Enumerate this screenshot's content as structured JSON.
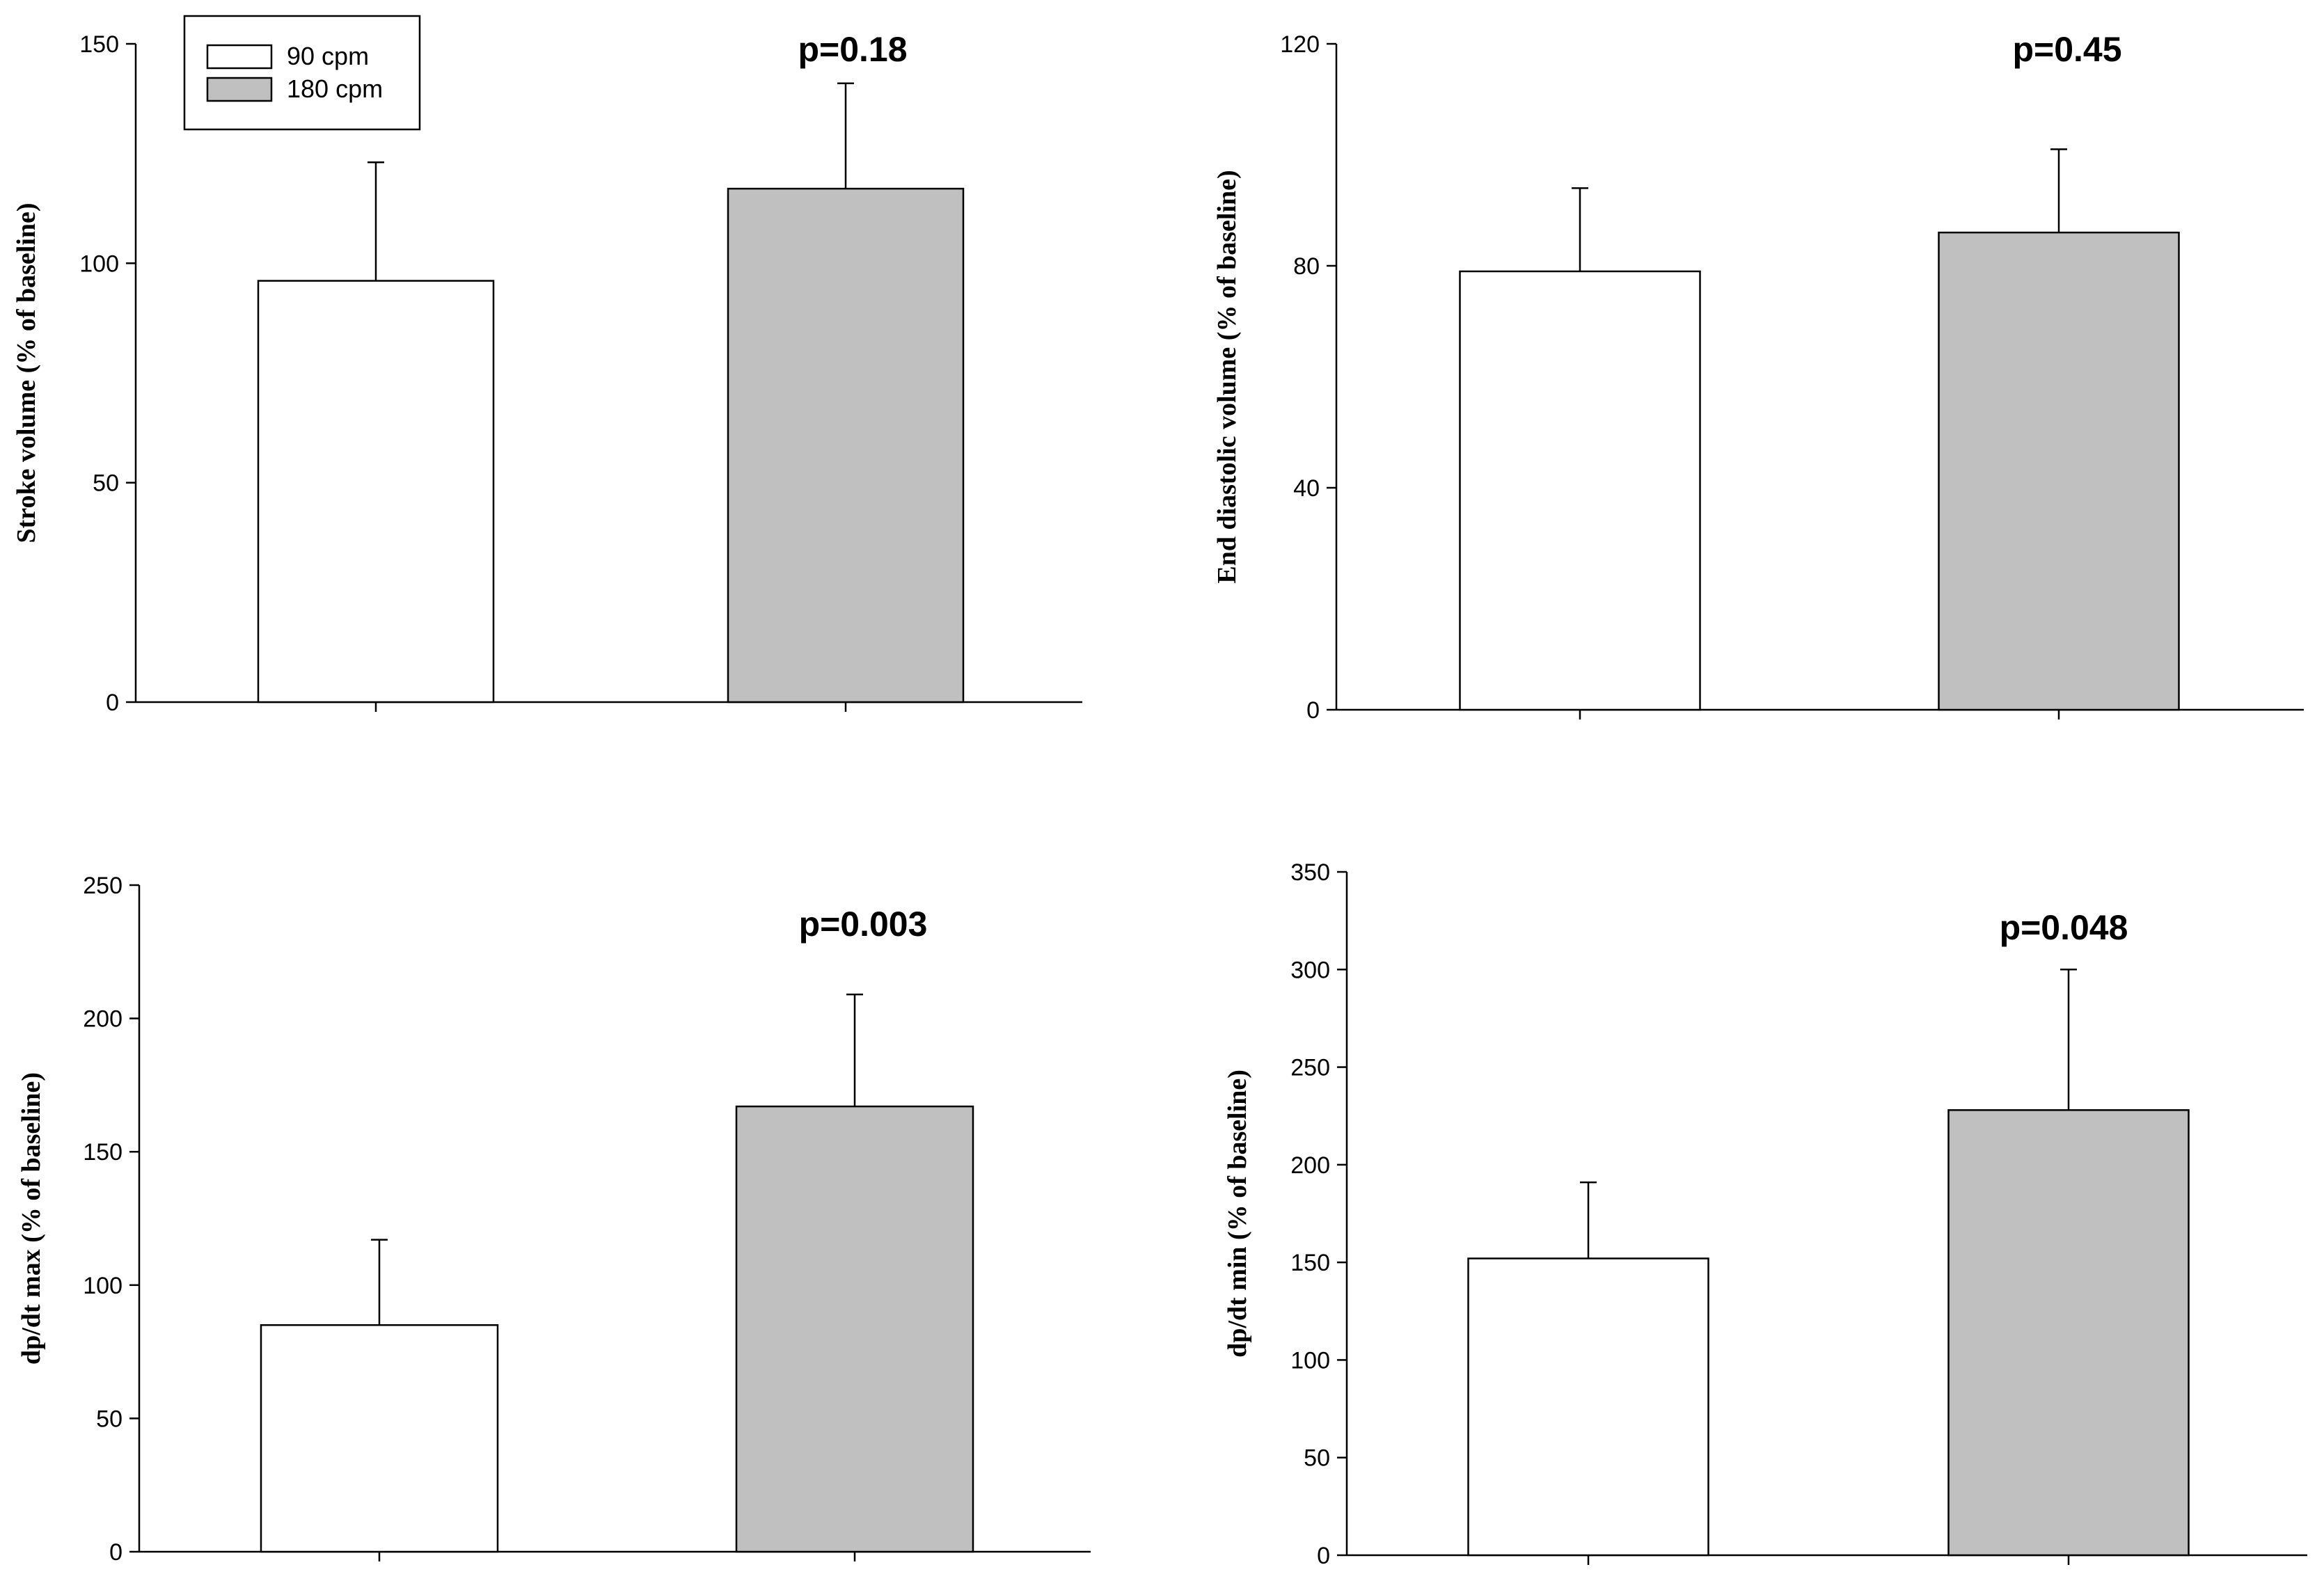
{
  "legend": {
    "entries": [
      {
        "label": "90 cpm",
        "color": "#ffffff"
      },
      {
        "label": "180 cpm",
        "color": "#c0c0c0"
      }
    ]
  },
  "chart_data": [
    {
      "type": "bar",
      "id": "stroke-volume",
      "ylabel": "Stroke volume (% of baseline)",
      "annotation": "p=0.18",
      "ylim": [
        0,
        150
      ],
      "yticks": [
        0,
        50,
        100,
        150
      ],
      "categories": [
        "90 cpm",
        "180 cpm"
      ],
      "values": [
        96,
        117
      ],
      "errors": [
        27,
        24
      ],
      "colors": [
        "#ffffff",
        "#c0c0c0"
      ]
    },
    {
      "type": "bar",
      "id": "end-diastolic-volume",
      "ylabel": "End diastolic volume (% of baseline)",
      "annotation": "p=0.45",
      "ylim": [
        0,
        120
      ],
      "yticks": [
        0,
        40,
        80,
        120
      ],
      "categories": [
        "90 cpm",
        "180 cpm"
      ],
      "values": [
        79,
        86
      ],
      "errors": [
        15,
        15
      ],
      "colors": [
        "#ffffff",
        "#c0c0c0"
      ]
    },
    {
      "type": "bar",
      "id": "dpdt-max",
      "ylabel": "dp/dt max (% of baseline)",
      "annotation": "p=0.003",
      "ylim": [
        0,
        250
      ],
      "yticks": [
        0,
        50,
        100,
        150,
        200,
        250
      ],
      "categories": [
        "90 cpm",
        "180 cpm"
      ],
      "values": [
        85,
        167
      ],
      "errors": [
        32,
        42
      ],
      "colors": [
        "#ffffff",
        "#c0c0c0"
      ]
    },
    {
      "type": "bar",
      "id": "dpdt-min",
      "ylabel": "dp/dt min (% of baseline)",
      "annotation": "p=0.048",
      "ylim": [
        0,
        350
      ],
      "yticks": [
        0,
        50,
        100,
        150,
        200,
        250,
        300,
        350
      ],
      "categories": [
        "90 cpm",
        "180 cpm"
      ],
      "values": [
        152,
        228
      ],
      "errors": [
        39,
        72
      ],
      "colors": [
        "#ffffff",
        "#c0c0c0"
      ]
    }
  ]
}
